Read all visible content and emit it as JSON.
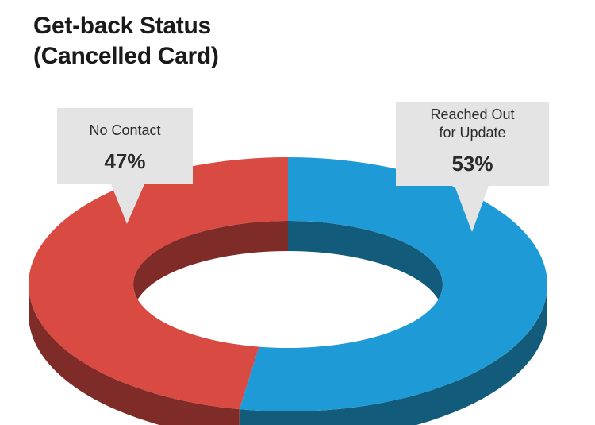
{
  "title_line1": "Get-back Status",
  "title_line2": "(Cancelled Card)",
  "chart_data": {
    "type": "pie",
    "title": "Get-back Status (Cancelled Card)",
    "slices": [
      {
        "label": "Reached Out for Update",
        "label_lines": [
          "Reached Out",
          "for Update"
        ],
        "value": 53,
        "value_label": "53%",
        "color": "#1e9bd7",
        "side_color": "#135b7a"
      },
      {
        "label": "No Contact",
        "label_lines": [
          "No Contact"
        ],
        "value": 47,
        "value_label": "47%",
        "color": "#d94b42",
        "side_color": "#7f2b28"
      }
    ]
  }
}
